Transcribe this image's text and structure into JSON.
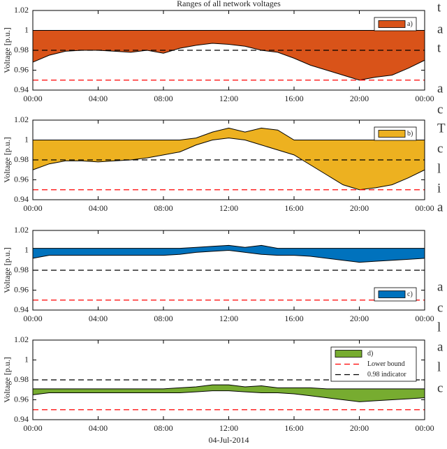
{
  "chart_data": [
    {
      "type": "area-range",
      "title": "Ranges of all network voltages",
      "ylabel": "Voltage [p.u.]",
      "x": [
        0,
        1,
        2,
        3,
        4,
        5,
        6,
        7,
        8,
        9,
        10,
        11,
        12,
        13,
        14,
        15,
        16,
        17,
        18,
        19,
        20,
        21,
        22,
        23,
        24
      ],
      "series": [
        {
          "name": "a)",
          "color": "#d95319",
          "upper": [
            1,
            1,
            1,
            1,
            1,
            1,
            1,
            1,
            1,
            1,
            1,
            1,
            1,
            1,
            1,
            1,
            1,
            1,
            1,
            1,
            1,
            1,
            1,
            1,
            1
          ],
          "lower": [
            0.968,
            0.975,
            0.979,
            0.98,
            0.98,
            0.979,
            0.978,
            0.98,
            0.977,
            0.982,
            0.985,
            0.987,
            0.986,
            0.984,
            0.98,
            0.978,
            0.972,
            0.965,
            0.96,
            0.955,
            0.95,
            0.953,
            0.955,
            0.962,
            0.97
          ]
        }
      ],
      "reference_lines": [
        {
          "value": 0.98,
          "color": "#000000"
        },
        {
          "value": 0.95,
          "color": "#ff0000"
        }
      ],
      "legend": "upper right",
      "xlim": [
        0,
        24
      ],
      "xticks": [
        {
          "value": 0,
          "label": "00:00"
        },
        {
          "value": 4,
          "label": "04:00"
        },
        {
          "value": 8,
          "label": "08:00"
        },
        {
          "value": 12,
          "label": "12:00"
        },
        {
          "value": 16,
          "label": "16:00"
        },
        {
          "value": 20,
          "label": "20:00"
        },
        {
          "value": 24,
          "label": "00:00"
        }
      ],
      "ylim": [
        0.94,
        1.02
      ],
      "yticks": [
        0.94,
        0.96,
        0.98,
        1,
        1.02
      ]
    },
    {
      "type": "area-range",
      "ylabel": "Voltage [p.u.]",
      "x": [
        0,
        1,
        2,
        3,
        4,
        5,
        6,
        7,
        8,
        9,
        10,
        11,
        12,
        13,
        14,
        15,
        16,
        17,
        18,
        19,
        20,
        21,
        22,
        23,
        24
      ],
      "series": [
        {
          "name": "b)",
          "color": "#edb120",
          "upper": [
            1,
            1,
            1,
            1,
            1,
            1,
            1,
            1,
            1,
            1,
            1.002,
            1.008,
            1.012,
            1.008,
            1.012,
            1.01,
            1,
            1,
            1,
            1,
            1,
            1,
            1,
            1,
            1
          ],
          "lower": [
            0.97,
            0.976,
            0.979,
            0.979,
            0.978,
            0.979,
            0.98,
            0.982,
            0.985,
            0.988,
            0.995,
            1,
            1.002,
            1,
            0.995,
            0.99,
            0.985,
            0.975,
            0.965,
            0.955,
            0.95,
            0.952,
            0.955,
            0.962,
            0.97
          ]
        }
      ],
      "reference_lines": [
        {
          "value": 0.98,
          "color": "#000000"
        },
        {
          "value": 0.95,
          "color": "#ff0000"
        }
      ],
      "legend": "upper right",
      "xlim": [
        0,
        24
      ],
      "xticks": [
        {
          "value": 0,
          "label": "00:00"
        },
        {
          "value": 4,
          "label": "04:00"
        },
        {
          "value": 8,
          "label": "08:00"
        },
        {
          "value": 12,
          "label": "12:00"
        },
        {
          "value": 16,
          "label": "16:00"
        },
        {
          "value": 20,
          "label": "20:00"
        },
        {
          "value": 24,
          "label": "00:00"
        }
      ],
      "ylim": [
        0.94,
        1.02
      ],
      "yticks": [
        0.94,
        0.96,
        0.98,
        1,
        1.02
      ]
    },
    {
      "type": "area-range",
      "ylabel": "Voltage [p.u.]",
      "x": [
        0,
        1,
        2,
        3,
        4,
        5,
        6,
        7,
        8,
        9,
        10,
        11,
        12,
        13,
        14,
        15,
        16,
        17,
        18,
        19,
        20,
        21,
        22,
        23,
        24
      ],
      "series": [
        {
          "name": "c)",
          "color": "#0072bd",
          "upper": [
            1.002,
            1.002,
            1.002,
            1.002,
            1.002,
            1.002,
            1.002,
            1.002,
            1.002,
            1.002,
            1.003,
            1.004,
            1.005,
            1.003,
            1.005,
            1.002,
            1.002,
            1.002,
            1.002,
            1.002,
            1.002,
            1.002,
            1.002,
            1.002,
            1.002
          ],
          "lower": [
            0.992,
            0.995,
            0.995,
            0.995,
            0.995,
            0.995,
            0.995,
            0.995,
            0.995,
            0.996,
            0.998,
            0.999,
            1,
            0.998,
            0.996,
            0.995,
            0.995,
            0.994,
            0.992,
            0.99,
            0.988,
            0.989,
            0.99,
            0.991,
            0.992
          ]
        }
      ],
      "reference_lines": [
        {
          "value": 0.98,
          "color": "#000000"
        },
        {
          "value": 0.95,
          "color": "#ff0000"
        }
      ],
      "legend": "lower right",
      "xlim": [
        0,
        24
      ],
      "xticks": [
        {
          "value": 0,
          "label": "00:00"
        },
        {
          "value": 4,
          "label": "04:00"
        },
        {
          "value": 8,
          "label": "08:00"
        },
        {
          "value": 12,
          "label": "12:00"
        },
        {
          "value": 16,
          "label": "16:00"
        },
        {
          "value": 20,
          "label": "20:00"
        },
        {
          "value": 24,
          "label": "00:00"
        }
      ],
      "ylim": [
        0.94,
        1.02
      ],
      "yticks": [
        0.94,
        0.96,
        0.98,
        1,
        1.02
      ]
    },
    {
      "type": "area-range",
      "ylabel": "Voltage [p.u.]",
      "xlabel": "04-Jul-2014",
      "x": [
        0,
        1,
        2,
        3,
        4,
        5,
        6,
        7,
        8,
        9,
        10,
        11,
        12,
        13,
        14,
        15,
        16,
        17,
        18,
        19,
        20,
        21,
        22,
        23,
        24
      ],
      "series": [
        {
          "name": "d)",
          "color": "#77ac30",
          "upper": [
            0.971,
            0.971,
            0.971,
            0.971,
            0.971,
            0.971,
            0.971,
            0.971,
            0.971,
            0.972,
            0.973,
            0.975,
            0.975,
            0.973,
            0.974,
            0.972,
            0.972,
            0.972,
            0.971,
            0.971,
            0.971,
            0.971,
            0.971,
            0.971,
            0.971
          ],
          "lower": [
            0.965,
            0.967,
            0.967,
            0.967,
            0.967,
            0.967,
            0.967,
            0.967,
            0.967,
            0.967,
            0.968,
            0.969,
            0.969,
            0.968,
            0.967,
            0.967,
            0.966,
            0.964,
            0.962,
            0.96,
            0.958,
            0.959,
            0.96,
            0.961,
            0.962
          ]
        }
      ],
      "reference_lines": [
        {
          "name": "Lower bound",
          "value": 0.95,
          "color": "#ff0000"
        },
        {
          "name": "0.98 indicator",
          "value": 0.98,
          "color": "#000000"
        }
      ],
      "legend": "upper right",
      "xlim": [
        0,
        24
      ],
      "xticks": [
        {
          "value": 0,
          "label": "00:00"
        },
        {
          "value": 4,
          "label": "04:00"
        },
        {
          "value": 8,
          "label": "08:00"
        },
        {
          "value": 12,
          "label": "12:00"
        },
        {
          "value": 16,
          "label": "16:00"
        },
        {
          "value": 20,
          "label": "20:00"
        },
        {
          "value": 24,
          "label": "00:00"
        }
      ],
      "ylim": [
        0.94,
        1.02
      ],
      "yticks": [
        0.94,
        0.96,
        0.98,
        1,
        1.02
      ]
    }
  ],
  "side_text": [
    "t",
    "a",
    "t",
    "a",
    "c",
    "T",
    "c",
    "l",
    "i",
    "a",
    "a",
    "c",
    "l",
    "a",
    "l",
    "c"
  ]
}
